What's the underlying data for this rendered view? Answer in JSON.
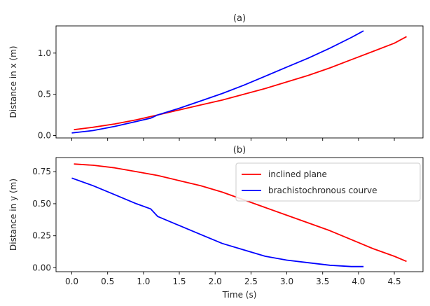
{
  "chart_data": [
    {
      "type": "line",
      "title": "(a)",
      "xlabel": "",
      "ylabel": "Distance in x (m)",
      "xlim": [
        -0.22,
        4.9
      ],
      "ylim": [
        -0.03,
        1.33
      ],
      "yticks": [
        0.0,
        0.5,
        1.0
      ],
      "ytick_labels": [
        "0.0",
        "0.5",
        "1.0"
      ],
      "xticks": [
        0.0,
        0.5,
        1.0,
        1.5,
        2.0,
        2.5,
        3.0,
        3.5,
        4.0,
        4.5
      ],
      "grid": false,
      "series": [
        {
          "name": "inclined plane",
          "color": "#ff0000",
          "x": [
            0.03,
            0.3,
            0.6,
            0.9,
            1.2,
            1.5,
            1.8,
            2.1,
            2.4,
            2.7,
            3.0,
            3.3,
            3.6,
            3.9,
            4.2,
            4.5,
            4.67
          ],
          "y": [
            0.07,
            0.1,
            0.14,
            0.19,
            0.25,
            0.31,
            0.37,
            0.43,
            0.5,
            0.57,
            0.65,
            0.73,
            0.82,
            0.92,
            1.02,
            1.12,
            1.2
          ]
        },
        {
          "name": "brachistochronous courve",
          "color": "#0000ff",
          "x": [
            0.0,
            0.3,
            0.6,
            0.9,
            1.1,
            1.2,
            1.5,
            1.8,
            2.1,
            2.4,
            2.7,
            3.0,
            3.3,
            3.6,
            3.9,
            4.07
          ],
          "y": [
            0.03,
            0.06,
            0.11,
            0.17,
            0.21,
            0.25,
            0.33,
            0.42,
            0.51,
            0.61,
            0.72,
            0.83,
            0.94,
            1.06,
            1.19,
            1.27
          ]
        }
      ]
    },
    {
      "type": "line",
      "title": "(b)",
      "xlabel": "Time (s)",
      "ylabel": "Distance in y (m)",
      "xlim": [
        -0.22,
        4.9
      ],
      "ylim": [
        -0.03,
        0.86
      ],
      "yticks": [
        0.0,
        0.25,
        0.5,
        0.75
      ],
      "ytick_labels": [
        "0.00",
        "0.25",
        "0.50",
        "0.75"
      ],
      "xticks": [
        0.0,
        0.5,
        1.0,
        1.5,
        2.0,
        2.5,
        3.0,
        3.5,
        4.0,
        4.5
      ],
      "xtick_labels": [
        "0.0",
        "0.5",
        "1.0",
        "1.5",
        "2.0",
        "2.5",
        "3.0",
        "3.5",
        "4.0",
        "4.5"
      ],
      "grid": false,
      "legend": "top-right",
      "series": [
        {
          "name": "inclined plane",
          "color": "#ff0000",
          "x": [
            0.03,
            0.3,
            0.6,
            0.9,
            1.2,
            1.5,
            1.8,
            2.1,
            2.4,
            2.7,
            3.0,
            3.3,
            3.6,
            3.9,
            4.2,
            4.5,
            4.67
          ],
          "y": [
            0.81,
            0.8,
            0.78,
            0.75,
            0.72,
            0.68,
            0.64,
            0.59,
            0.53,
            0.47,
            0.41,
            0.35,
            0.29,
            0.22,
            0.15,
            0.09,
            0.05
          ]
        },
        {
          "name": "brachistochronous courve",
          "color": "#0000ff",
          "x": [
            0.0,
            0.3,
            0.6,
            0.9,
            1.1,
            1.2,
            1.5,
            1.8,
            2.1,
            2.4,
            2.7,
            3.0,
            3.3,
            3.6,
            3.9,
            4.07
          ],
          "y": [
            0.7,
            0.64,
            0.57,
            0.5,
            0.46,
            0.4,
            0.33,
            0.26,
            0.19,
            0.14,
            0.09,
            0.06,
            0.04,
            0.02,
            0.01,
            0.01
          ]
        }
      ]
    }
  ]
}
